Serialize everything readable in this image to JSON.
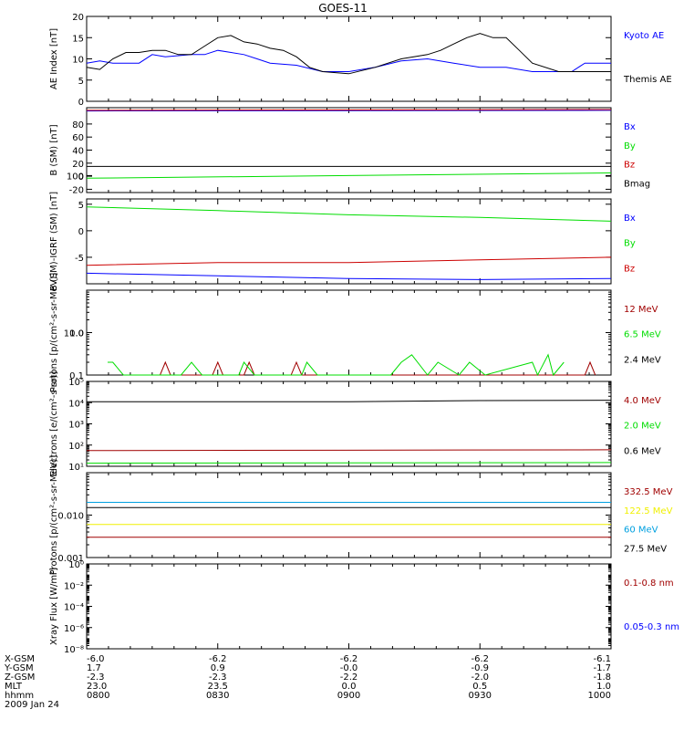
{
  "title": "GOES-11",
  "footer": {
    "row_labels": [
      "X-GSM",
      "Y-GSM",
      "Z-GSM",
      "MLT",
      "hhmm",
      "2009 Jan 24"
    ],
    "columns": [
      {
        "x": "-6.0",
        "y": "1.7",
        "z": "-2.3",
        "mlt": "23.0",
        "hhmm": "0800"
      },
      {
        "x": "-6.2",
        "y": "0.9",
        "z": "-2.3",
        "mlt": "23.5",
        "hhmm": "0830"
      },
      {
        "x": "-6.2",
        "y": "-0.0",
        "z": "-2.2",
        "mlt": "0.0",
        "hhmm": "0900"
      },
      {
        "x": "-6.2",
        "y": "-0.9",
        "z": "-2.0",
        "mlt": "0.5",
        "hhmm": "0930"
      },
      {
        "x": "-6.1",
        "y": "-1.7",
        "z": "-1.8",
        "mlt": "1.0",
        "hhmm": "1000"
      }
    ]
  },
  "colors": {
    "black": "#000000",
    "blue": "#0000ff",
    "green": "#00dd00",
    "red": "#cc0000",
    "darkred": "#a00000",
    "cyan": "#00a0e0",
    "yellow": "#f0f000"
  },
  "chart_data": [
    {
      "type": "line",
      "ylabel": "AE Index [nT]",
      "ylim": [
        0,
        20
      ],
      "yscale": "linear",
      "yticks": [
        "0",
        "5",
        "10",
        "15",
        "20"
      ],
      "x_range_hours": [
        8.0,
        10.0
      ],
      "series": [
        {
          "name": "Kyoto AE",
          "color": "#0000ff",
          "x": [
            8.0,
            8.05,
            8.1,
            8.2,
            8.25,
            8.3,
            8.4,
            8.45,
            8.5,
            8.6,
            8.65,
            8.7,
            8.8,
            8.9,
            9.0,
            9.1,
            9.2,
            9.3,
            9.4,
            9.5,
            9.6,
            9.7,
            9.8,
            9.85,
            9.9,
            10.0
          ],
          "y": [
            9,
            9.5,
            9,
            9,
            11,
            10.5,
            11,
            11,
            12,
            11,
            10,
            9,
            8.5,
            7,
            7,
            8,
            9.5,
            10,
            9,
            8,
            8,
            7,
            7,
            7,
            9,
            9
          ]
        },
        {
          "name": "Themis AE",
          "color": "#000000",
          "x": [
            8.0,
            8.05,
            8.1,
            8.15,
            8.2,
            8.25,
            8.3,
            8.35,
            8.4,
            8.45,
            8.5,
            8.55,
            8.6,
            8.65,
            8.7,
            8.75,
            8.8,
            8.85,
            8.9,
            9.0,
            9.1,
            9.2,
            9.3,
            9.35,
            9.4,
            9.45,
            9.5,
            9.55,
            9.6,
            9.65,
            9.7,
            9.8,
            9.9,
            10.0
          ],
          "y": [
            8,
            7.5,
            10,
            11.5,
            11.5,
            12,
            12,
            11,
            11,
            13,
            15,
            15.5,
            14,
            13.5,
            12.5,
            12,
            10.5,
            8,
            7,
            6.5,
            8,
            10,
            11,
            12,
            13.5,
            15,
            16,
            15,
            15,
            12,
            9,
            7,
            7,
            7
          ]
        }
      ]
    },
    {
      "type": "line",
      "ylabel": "B (SM) [nT]",
      "ylim": [
        -25,
        105
      ],
      "yscale": "linear",
      "yticks": [
        "-20",
        "0",
        "20",
        "40",
        "60",
        "80",
        "100"
      ],
      "series": [
        {
          "name": "Bx",
          "color": "#0000ff",
          "x": [
            8.0,
            10.0
          ],
          "y": [
            100,
            101
          ]
        },
        {
          "name": "By",
          "color": "#00dd00",
          "x": [
            8.0,
            10.0
          ],
          "y": [
            -3,
            5
          ]
        },
        {
          "name": "Bz",
          "color": "#cc0000",
          "x": [
            8.0,
            10.0
          ],
          "y": [
            101,
            102
          ]
        },
        {
          "name": "Bmag",
          "color": "#000000",
          "x": [
            8.0,
            10.0
          ],
          "y": [
            15,
            15
          ]
        }
      ]
    },
    {
      "type": "line",
      "ylabel": "B (SM)-IGRF (SM) [nT]",
      "ylim": [
        -10,
        6
      ],
      "yscale": "linear",
      "yticks": [
        "-5",
        "0",
        "5"
      ],
      "series": [
        {
          "name": "Bx",
          "color": "#0000ff",
          "x": [
            8.0,
            8.5,
            9.0,
            9.5,
            10.0
          ],
          "y": [
            -8,
            -8.5,
            -9,
            -9.2,
            -9
          ]
        },
        {
          "name": "By",
          "color": "#00dd00",
          "x": [
            8.0,
            8.5,
            9.0,
            9.5,
            10.0
          ],
          "y": [
            4.5,
            3.8,
            3,
            2.5,
            1.8
          ]
        },
        {
          "name": "Bz",
          "color": "#cc0000",
          "x": [
            8.0,
            8.5,
            9.0,
            9.5,
            10.0
          ],
          "y": [
            -6.5,
            -6,
            -6,
            -5.5,
            -5
          ]
        }
      ]
    },
    {
      "type": "line",
      "ylabel": "Protons [p/(cm²-s-sr-MeV)]",
      "ylim": [
        0.1,
        10.0
      ],
      "yscale": "log",
      "yticks": [
        "0.1",
        "1.0",
        "10.0"
      ],
      "series": [
        {
          "name": "12 MeV",
          "color": "#a00000",
          "x": [
            8.28,
            8.3,
            8.32,
            8.48,
            8.5,
            8.52,
            8.6,
            8.62,
            8.64,
            8.78,
            8.8,
            8.82,
            9.9,
            9.92,
            9.94
          ],
          "y": [
            0.1,
            0.2,
            0.1,
            0.1,
            0.2,
            0.1,
            0.1,
            0.2,
            0.1,
            0.1,
            0.2,
            0.1,
            0.1,
            0.2,
            0.1
          ]
        },
        {
          "name": "6.5 MeV",
          "color": "#00dd00",
          "x": [
            8.08,
            8.1,
            8.14,
            8.36,
            8.4,
            8.44,
            8.58,
            8.6,
            8.64,
            8.82,
            8.84,
            8.88,
            9.1,
            9.16,
            9.2,
            9.24,
            9.3,
            9.34,
            9.42,
            9.46,
            9.52,
            9.7,
            9.72,
            9.76,
            9.78,
            9.82
          ],
          "y": [
            0.2,
            0.2,
            0.1,
            0.1,
            0.2,
            0.1,
            0.1,
            0.2,
            0.1,
            0.1,
            0.2,
            0.1,
            0.1,
            0.1,
            0.2,
            0.3,
            0.1,
            0.2,
            0.1,
            0.2,
            0.1,
            0.2,
            0.1,
            0.3,
            0.1,
            0.2
          ]
        },
        {
          "name": "2.4 MeV",
          "color": "#000000",
          "x": [],
          "y": []
        }
      ]
    },
    {
      "type": "line",
      "ylabel": "Electrons [e/(cm²-s-sr)]",
      "ylim": [
        10,
        100000
      ],
      "yscale": "log",
      "yticks": [
        "10¹",
        "10²",
        "10³",
        "10⁴",
        "10⁵"
      ],
      "series": [
        {
          "name": "4.0 MeV",
          "color": "#a00000",
          "x": [
            8.0,
            10.0
          ],
          "y": [
            55,
            60
          ]
        },
        {
          "name": "2.0 MeV",
          "color": "#00dd00",
          "x": [
            8.0,
            10.0
          ],
          "y": [
            14,
            15
          ]
        },
        {
          "name": "0.6 MeV",
          "color": "#000000",
          "x": [
            8.0,
            9.0,
            9.5,
            10.0
          ],
          "y": [
            11000,
            11000,
            12500,
            13000
          ]
        }
      ]
    },
    {
      "type": "line",
      "ylabel": "Protons [p/(cm²-s-sr-MeV)]",
      "ylim": [
        0.001,
        0.1
      ],
      "yscale": "log",
      "yticks": [
        "0.001",
        "0.010"
      ],
      "series": [
        {
          "name": "332.5 MeV",
          "color": "#a00000",
          "x": [
            8.0,
            10.0
          ],
          "y": [
            0.003,
            0.003
          ]
        },
        {
          "name": "122.5 MeV",
          "color": "#f0f000",
          "x": [
            8.0,
            10.0
          ],
          "y": [
            0.006,
            0.006
          ]
        },
        {
          "name": "60 MeV",
          "color": "#00a0e0",
          "x": [
            8.0,
            10.0
          ],
          "y": [
            0.02,
            0.02
          ]
        },
        {
          "name": "27.5 MeV",
          "color": "#000000",
          "x": [
            8.0,
            10.0
          ],
          "y": [
            0.015,
            0.015
          ]
        }
      ]
    },
    {
      "type": "line",
      "ylabel": "Xray Flux [W/m²]",
      "ylim": [
        1e-08,
        1
      ],
      "yscale": "log",
      "yticks": [
        "10⁻⁸",
        "10⁻⁶",
        "10⁻⁴",
        "10⁻²",
        "10⁰"
      ],
      "series": [
        {
          "name": "0.1-0.8 nm",
          "color": "#a00000",
          "x": [],
          "y": []
        },
        {
          "name": "0.05-0.3 nm",
          "color": "#0000ff",
          "x": [],
          "y": []
        }
      ]
    }
  ]
}
